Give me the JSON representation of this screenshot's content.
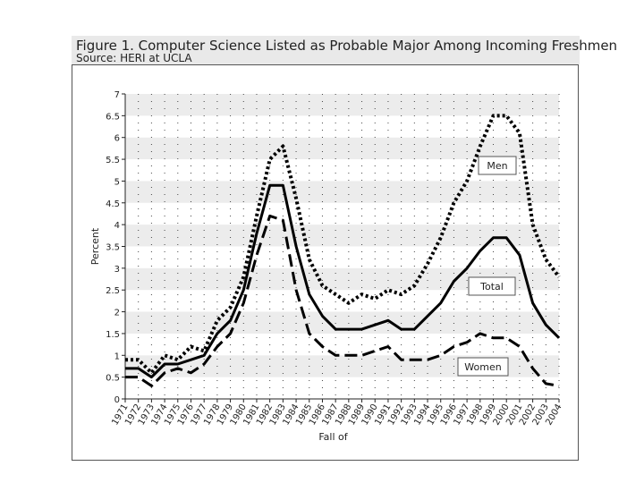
{
  "chart_data": {
    "type": "line",
    "title": "Figure 1. Computer Science Listed as Probable Major Among Incoming Freshmen",
    "subtitle": "Source: HERI at UCLA",
    "xlabel": "Fall of",
    "ylabel": "Percent",
    "ylim": [
      0,
      7
    ],
    "y_ticks": [
      "0",
      "0.5",
      "1",
      "1.5",
      "2",
      "2.5",
      "3",
      "3.5",
      "4",
      "4.5",
      "5",
      "5.5",
      "6",
      "6.5",
      "7"
    ],
    "categories": [
      "1971",
      "1972",
      "1973",
      "1974",
      "1975",
      "1976",
      "1977",
      "1978",
      "1979",
      "1980",
      "1981",
      "1982",
      "1983",
      "1984",
      "1985",
      "1986",
      "1987",
      "1988",
      "1989",
      "1990",
      "1991",
      "1992",
      "1993",
      "1994",
      "1995",
      "1996",
      "1997",
      "1998",
      "1999",
      "2000",
      "2001",
      "2002",
      "2003",
      "2004"
    ],
    "series": [
      {
        "name": "Men",
        "style": "dotted",
        "values": [
          0.9,
          0.9,
          0.6,
          1.0,
          0.9,
          1.2,
          1.1,
          1.8,
          2.1,
          2.8,
          4.2,
          5.5,
          5.8,
          4.6,
          3.2,
          2.6,
          2.4,
          2.2,
          2.4,
          2.3,
          2.5,
          2.4,
          2.6,
          3.1,
          3.7,
          4.5,
          5.0,
          5.8,
          6.5,
          6.5,
          6.1,
          4.0,
          3.2,
          2.8
        ]
      },
      {
        "name": "Total",
        "style": "solid",
        "values": [
          0.7,
          0.7,
          0.5,
          0.8,
          0.8,
          0.9,
          1.0,
          1.5,
          1.8,
          2.5,
          3.8,
          4.9,
          4.9,
          3.5,
          2.4,
          1.9,
          1.6,
          1.6,
          1.6,
          1.7,
          1.8,
          1.6,
          1.6,
          1.9,
          2.2,
          2.7,
          3.0,
          3.4,
          3.7,
          3.7,
          3.3,
          2.2,
          1.7,
          1.4
        ]
      },
      {
        "name": "Women",
        "style": "dashed",
        "values": [
          0.5,
          0.5,
          0.3,
          0.6,
          0.7,
          0.6,
          0.8,
          1.2,
          1.5,
          2.2,
          3.3,
          4.2,
          4.1,
          2.5,
          1.5,
          1.2,
          1.0,
          1.0,
          1.0,
          1.1,
          1.2,
          0.9,
          0.9,
          0.9,
          1.0,
          1.2,
          1.3,
          1.5,
          1.4,
          1.4,
          1.2,
          0.7,
          0.35,
          0.3
        ]
      }
    ],
    "annotations": [
      {
        "label": "Men",
        "series": "Men"
      },
      {
        "label": "Total",
        "series": "Total"
      },
      {
        "label": "Women",
        "series": "Women"
      }
    ],
    "grid": true,
    "legend": "none"
  }
}
